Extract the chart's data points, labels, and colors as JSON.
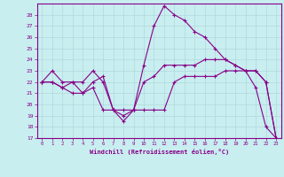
{
  "xlabel": "Windchill (Refroidissement éolien,°C)",
  "background_color": "#c8eef0",
  "grid_color": "#b0d8dc",
  "line_color": "#880088",
  "xlim": [
    -0.5,
    23.5
  ],
  "ylim": [
    17,
    29
  ],
  "yticks": [
    17,
    18,
    19,
    20,
    21,
    22,
    23,
    24,
    25,
    26,
    27,
    28
  ],
  "xticks": [
    0,
    1,
    2,
    3,
    4,
    5,
    6,
    7,
    8,
    9,
    10,
    11,
    12,
    13,
    14,
    15,
    16,
    17,
    18,
    19,
    20,
    21,
    22,
    23
  ],
  "series1_x": [
    0,
    1,
    2,
    3,
    4,
    5,
    6,
    7,
    8,
    9,
    10,
    11,
    12,
    13,
    14,
    15,
    16,
    17,
    18,
    19,
    20,
    21,
    22,
    23
  ],
  "series1_y": [
    22.0,
    23.0,
    22.0,
    22.0,
    22.0,
    23.0,
    22.0,
    19.5,
    19.0,
    19.5,
    23.5,
    27.0,
    28.8,
    28.0,
    27.5,
    26.5,
    26.0,
    25.0,
    24.0,
    23.5,
    23.0,
    21.5,
    18.0,
    17.0
  ],
  "series2_x": [
    0,
    1,
    2,
    3,
    4,
    5,
    6,
    7,
    8,
    9,
    10,
    11,
    12,
    13,
    14,
    15,
    16,
    17,
    18,
    19,
    20,
    21,
    22,
    23
  ],
  "series2_y": [
    22.0,
    22.0,
    21.5,
    22.0,
    21.0,
    22.0,
    22.5,
    19.5,
    19.5,
    19.5,
    22.0,
    22.5,
    23.5,
    23.5,
    23.5,
    23.5,
    24.0,
    24.0,
    24.0,
    23.5,
    23.0,
    23.0,
    22.0,
    17.0
  ],
  "series3_x": [
    0,
    1,
    2,
    3,
    4,
    5,
    6,
    7,
    8,
    9,
    10,
    11,
    12,
    13,
    14,
    15,
    16,
    17,
    18,
    19,
    20,
    21,
    22,
    23
  ],
  "series3_y": [
    22.0,
    22.0,
    21.5,
    21.0,
    21.0,
    21.5,
    19.5,
    19.5,
    18.5,
    19.5,
    19.5,
    19.5,
    19.5,
    22.0,
    22.5,
    22.5,
    22.5,
    22.5,
    23.0,
    23.0,
    23.0,
    23.0,
    22.0,
    17.0
  ]
}
